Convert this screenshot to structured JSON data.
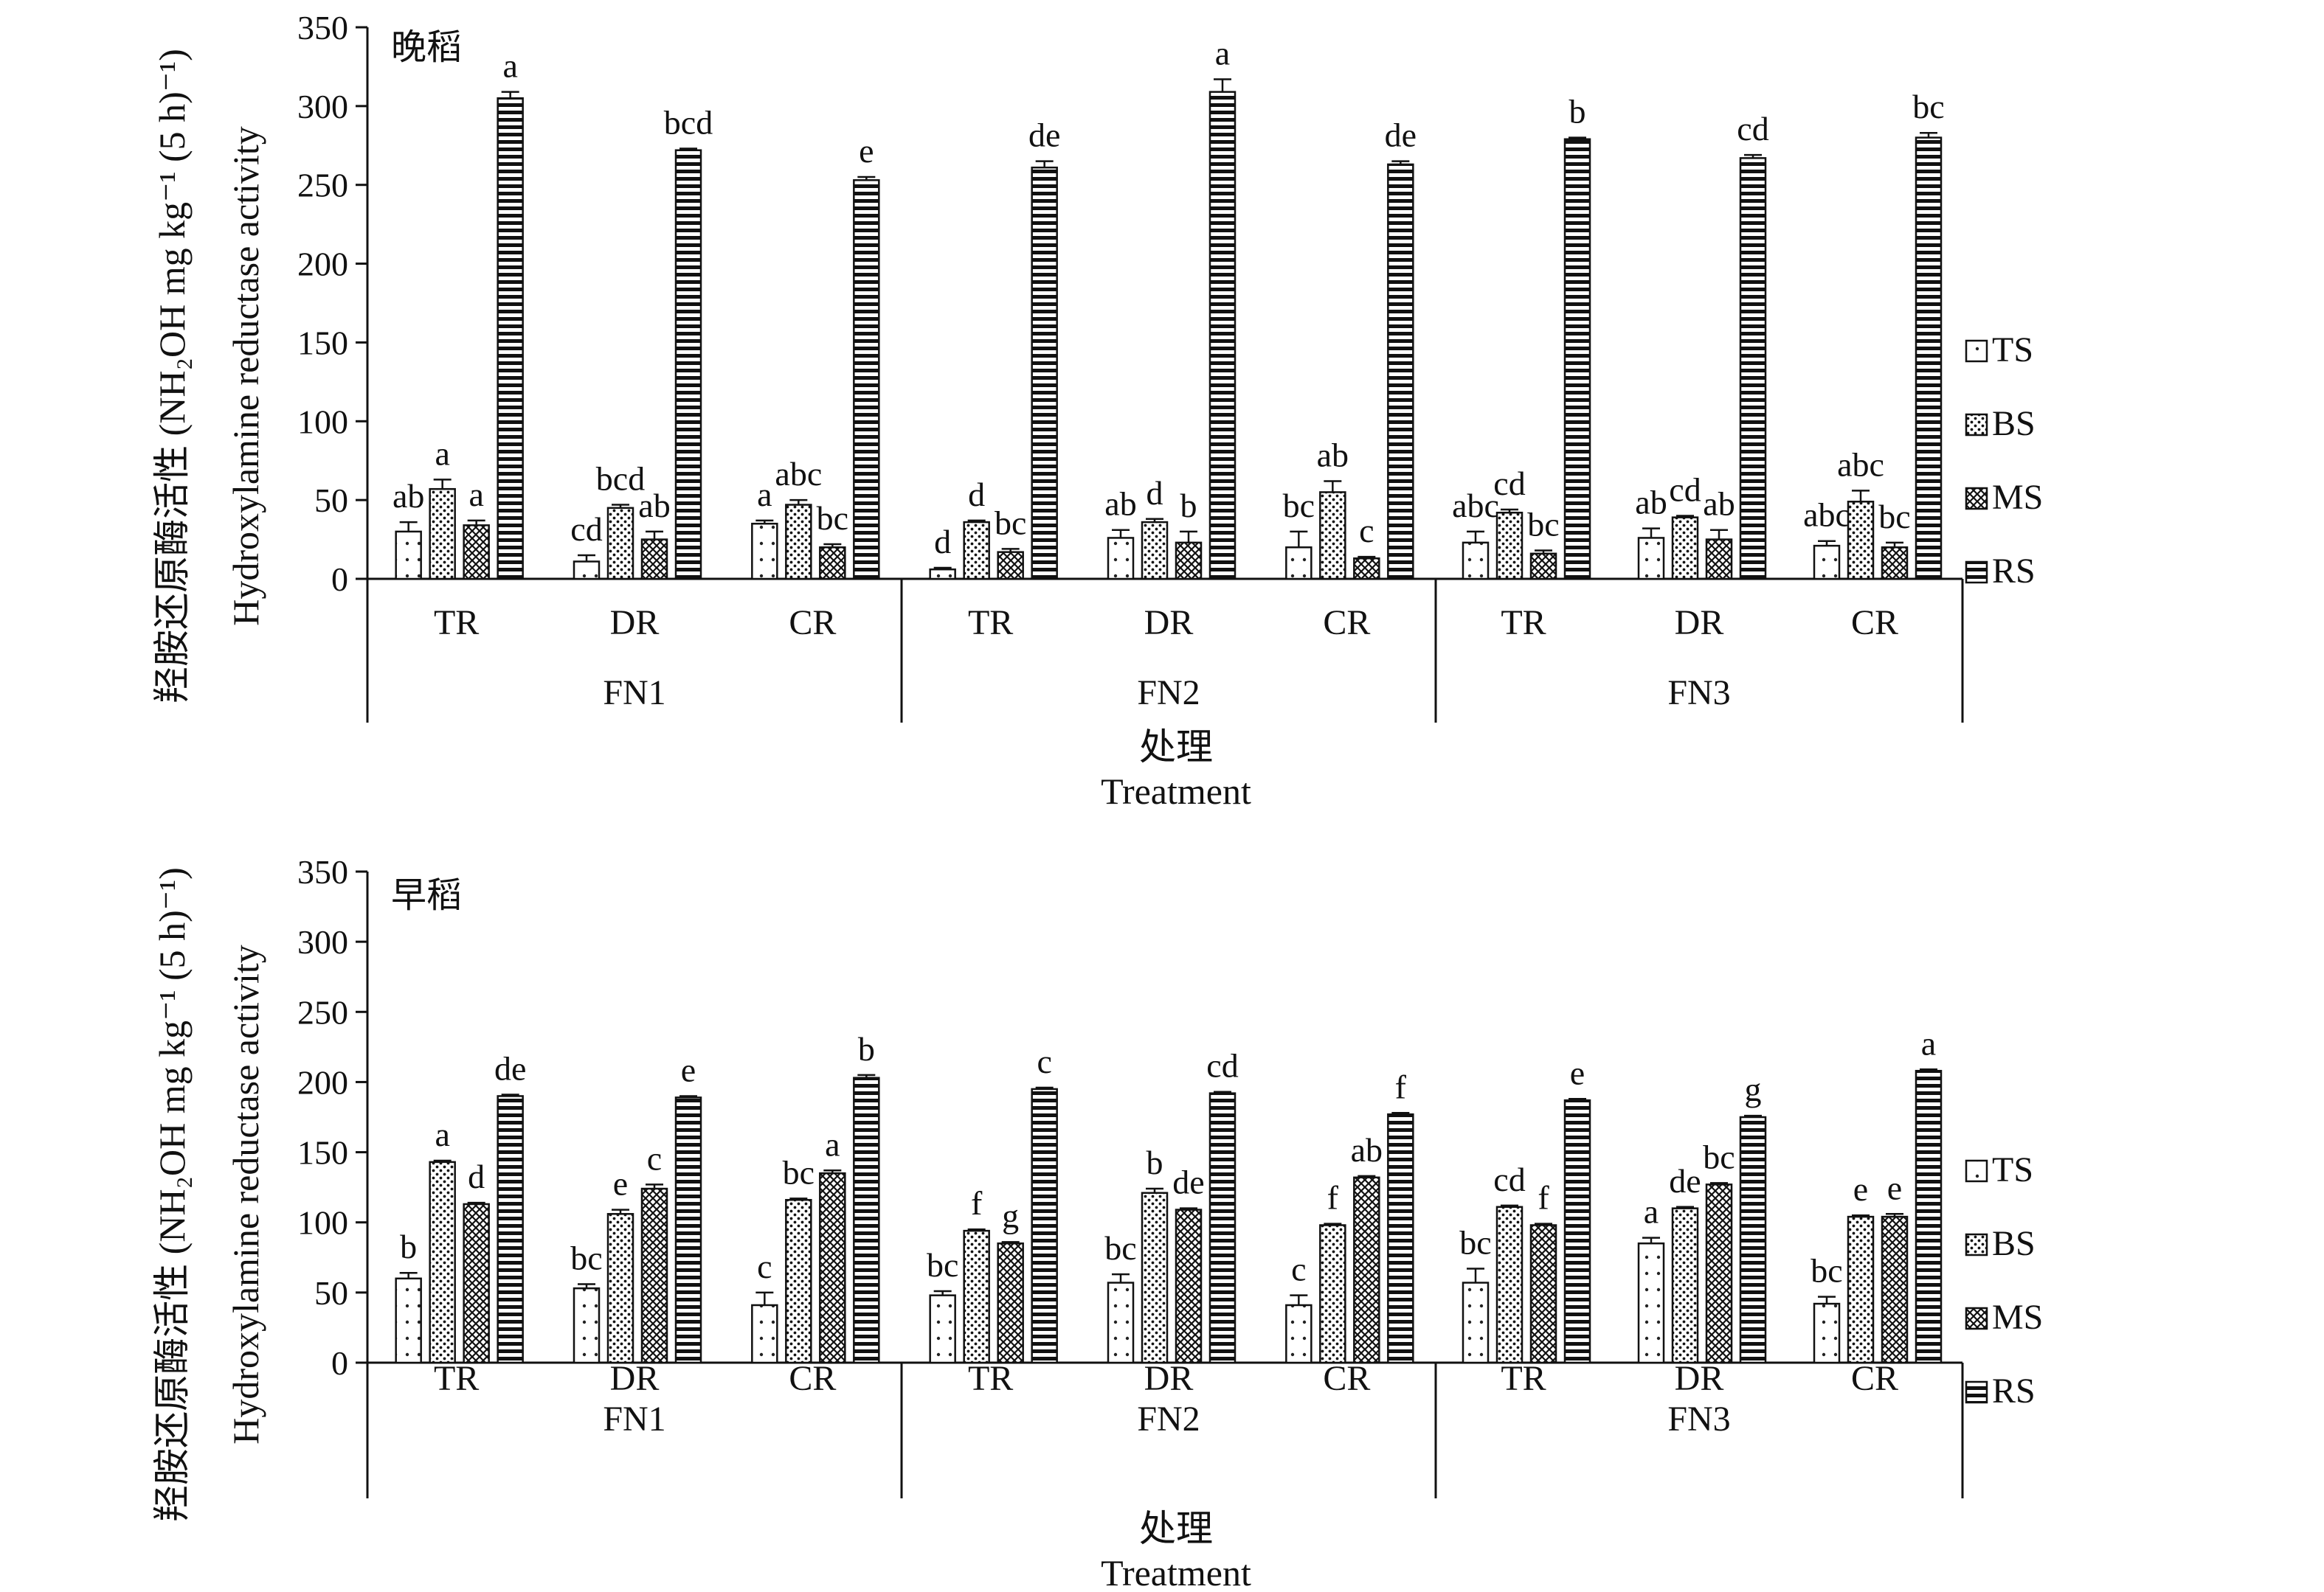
{
  "chart_data": [
    {
      "type": "bar",
      "tag": "晚稻",
      "ylabel_cn": "羟胺还原酶活性 (NH₂OH mg kg⁻¹ (5 h)⁻¹)",
      "ylabel_en": "Hydroxylamine reductase activity",
      "xlabel_cn": "处理",
      "xlabel_en": "Treatment",
      "ylim": [
        0,
        350
      ],
      "yticks": [
        0,
        50,
        100,
        150,
        200,
        250,
        300,
        350
      ],
      "groups": [
        "FN1",
        "FN2",
        "FN3"
      ],
      "categories": [
        "TR",
        "DR",
        "CR",
        "TR",
        "DR",
        "CR",
        "TR",
        "DR",
        "CR"
      ],
      "series": [
        {
          "name": "TS",
          "values": [
            30,
            11,
            35,
            6,
            26,
            20,
            23,
            26,
            21
          ],
          "errors": [
            6,
            4,
            2,
            1,
            5,
            10,
            7,
            6,
            3
          ],
          "labels": [
            "ab",
            "cd",
            "a",
            "d",
            "ab",
            "bc",
            "abc",
            "ab",
            "abc"
          ]
        },
        {
          "name": "BS",
          "values": [
            57,
            45,
            47,
            36,
            36,
            55,
            42,
            39,
            49
          ],
          "errors": [
            6,
            2,
            3,
            1,
            2,
            7,
            2,
            1,
            7
          ],
          "labels": [
            "a",
            "bcd",
            "abc",
            "d",
            "d",
            "ab",
            "cd",
            "cd",
            "abc"
          ]
        },
        {
          "name": "MS",
          "values": [
            34,
            25,
            20,
            17,
            23,
            13,
            16,
            25,
            20
          ],
          "errors": [
            3,
            5,
            2,
            2,
            7,
            1,
            2,
            6,
            3
          ],
          "labels": [
            "a",
            "ab",
            "bc",
            "bc",
            "b",
            "c",
            "bc",
            "ab",
            "bc"
          ]
        },
        {
          "name": "RS",
          "values": [
            305,
            272,
            253,
            261,
            309,
            263,
            279,
            267,
            280
          ],
          "errors": [
            4,
            1,
            2,
            4,
            8,
            2,
            1,
            2,
            3
          ],
          "labels": [
            "a",
            "bcd",
            "e",
            "de",
            "a",
            "de",
            "b",
            "cd",
            "bc"
          ]
        }
      ]
    },
    {
      "type": "bar",
      "tag": "早稻",
      "ylabel_cn": "羟胺还原酶活性 (NH₂OH mg kg⁻¹ (5 h)⁻¹)",
      "ylabel_en": "Hydroxylamine reductase activity",
      "xlabel_cn": "处理",
      "xlabel_en": "Treatment",
      "ylim": [
        0,
        350
      ],
      "yticks": [
        0,
        50,
        100,
        150,
        200,
        250,
        300,
        350
      ],
      "groups": [
        "FN1",
        "FN2",
        "FN3"
      ],
      "categories": [
        "TR",
        "DR",
        "CR",
        "TR",
        "DR",
        "CR",
        "TR",
        "DR",
        "CR"
      ],
      "series": [
        {
          "name": "TS",
          "values": [
            60,
            53,
            41,
            48,
            57,
            41,
            57,
            85,
            42
          ],
          "errors": [
            4,
            3,
            9,
            3,
            6,
            7,
            10,
            4,
            5
          ],
          "labels": [
            "b",
            "bc",
            "c",
            "bc",
            "bc",
            "c",
            "bc",
            "a",
            "bc"
          ]
        },
        {
          "name": "BS",
          "values": [
            143,
            106,
            116,
            94,
            121,
            98,
            111,
            110,
            104
          ],
          "errors": [
            1,
            3,
            1,
            1,
            3,
            1,
            1,
            1,
            1
          ],
          "labels": [
            "a",
            "e",
            "bc",
            "f",
            "b",
            "f",
            "cd",
            "de",
            "e"
          ]
        },
        {
          "name": "MS",
          "values": [
            113,
            124,
            135,
            85,
            109,
            132,
            98,
            127,
            104
          ],
          "errors": [
            1,
            3,
            2,
            1,
            1,
            1,
            1,
            1,
            2
          ],
          "labels": [
            "d",
            "c",
            "a",
            "g",
            "de",
            "ab",
            "f",
            "bc",
            "e"
          ]
        },
        {
          "name": "RS",
          "values": [
            190,
            189,
            203,
            195,
            192,
            177,
            187,
            175,
            208
          ],
          "errors": [
            1,
            1,
            2,
            1,
            1,
            1,
            1,
            1,
            1
          ],
          "labels": [
            "de",
            "e",
            "b",
            "c",
            "cd",
            "f",
            "e",
            "g",
            "a"
          ]
        }
      ]
    }
  ]
}
